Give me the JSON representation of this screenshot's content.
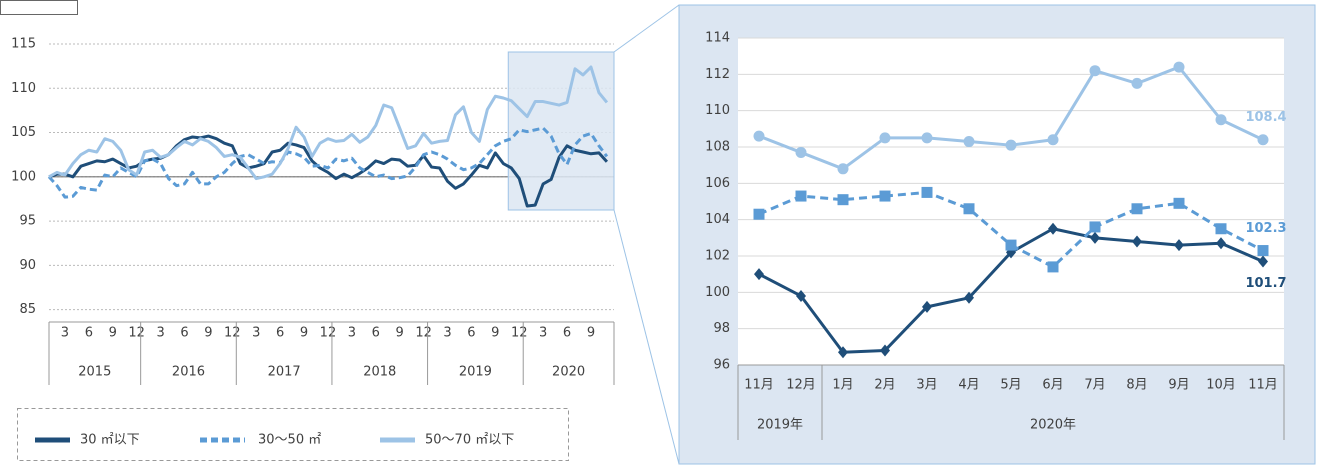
{
  "chart_data": [
    {
      "type": "line",
      "categories": [
        null,
        null,
        "3",
        null,
        null,
        "6",
        null,
        null,
        "9",
        null,
        null,
        "12",
        null,
        null,
        "3",
        null,
        null,
        "6",
        null,
        null,
        "9",
        null,
        null,
        "12",
        null,
        null,
        "3",
        null,
        null,
        "6",
        null,
        null,
        "9",
        null,
        null,
        "12",
        null,
        null,
        "3",
        null,
        null,
        "6",
        null,
        null,
        "9",
        null,
        null,
        "12",
        null,
        null,
        "3",
        null,
        null,
        "6",
        null,
        null,
        "9",
        null,
        null,
        "12",
        null,
        null,
        "3",
        null,
        null,
        "6",
        null,
        null,
        "9",
        null,
        null
      ],
      "category_groups": [
        "2015",
        "2015",
        "2015",
        "2015",
        "2015",
        "2015",
        "2015",
        "2015",
        "2015",
        "2015",
        "2015",
        "2015",
        "2016",
        "2016",
        "2016",
        "2016",
        "2016",
        "2016",
        "2016",
        "2016",
        "2016",
        "2016",
        "2016",
        "2016",
        "2017",
        "2017",
        "2017",
        "2017",
        "2017",
        "2017",
        "2017",
        "2017",
        "2017",
        "2017",
        "2017",
        "2017",
        "2018",
        "2018",
        "2018",
        "2018",
        "2018",
        "2018",
        "2018",
        "2018",
        "2018",
        "2018",
        "2018",
        "2018",
        "2019",
        "2019",
        "2019",
        "2019",
        "2019",
        "2019",
        "2019",
        "2019",
        "2019",
        "2019",
        "2019",
        "2019",
        "2020",
        "2020",
        "2020",
        "2020",
        "2020",
        "2020",
        "2020",
        "2020",
        "2020",
        "2020",
        "2020"
      ],
      "ylim": [
        83.6,
        115
      ],
      "yticks": [
        85,
        90,
        95,
        100,
        105,
        110,
        115
      ],
      "grid": true,
      "baseline": 100,
      "series": [
        {
          "name": "30 ㎡以下",
          "color": "#1f4e79",
          "dash": false,
          "values": [
            100,
            100.3,
            100.3,
            100,
            101.2,
            101.5,
            101.8,
            101.7,
            102,
            101.5,
            101,
            101.2,
            101.8,
            102,
            102.1,
            102.5,
            103.5,
            104.2,
            104.5,
            104.4,
            104.6,
            104.3,
            103.8,
            103.5,
            101.5,
            101,
            101.2,
            101.5,
            102.8,
            103,
            103.8,
            103.6,
            103.3,
            101.8,
            101,
            100.5,
            99.8,
            100.3,
            99.9,
            100.4,
            101,
            101.8,
            101.5,
            102,
            101.9,
            101.2,
            101.3,
            102.4,
            101.1,
            101,
            99.5,
            98.7,
            99.2,
            100.2,
            101.3,
            101,
            102.7,
            101.5,
            101,
            99.8,
            96.7,
            96.8,
            99.2,
            99.7,
            102.2,
            103.5,
            103,
            102.8,
            102.6,
            102.7,
            101.7
          ]
        },
        {
          "name": "30～50 ㎡",
          "color": "#5b9bd5",
          "dash": true,
          "values": [
            100,
            99,
            97.7,
            97.8,
            98.8,
            98.6,
            98.5,
            100.2,
            100,
            101,
            100.5,
            100,
            101.8,
            102,
            101.5,
            99.8,
            99,
            99.2,
            100.5,
            99.2,
            99.2,
            100,
            100.5,
            101.5,
            102.3,
            102.5,
            102,
            101.5,
            101.7,
            101.6,
            102.8,
            102.6,
            102.2,
            101.2,
            101.3,
            101,
            102,
            101.8,
            102.1,
            101,
            100.5,
            100,
            100.2,
            99.8,
            99.9,
            100.1,
            101.1,
            102.5,
            102.8,
            102.5,
            102,
            101.3,
            100.8,
            101,
            101.5,
            102.5,
            103.5,
            104,
            104.3,
            105.3,
            105.1,
            105.3,
            105.5,
            104.6,
            102.6,
            101.4,
            103.6,
            104.6,
            104.9,
            103.5,
            102.3
          ]
        },
        {
          "name": "50～70 ㎡以下",
          "color": "#9dc3e6",
          "dash": false,
          "values": [
            100,
            100.5,
            100.2,
            101.5,
            102.5,
            103,
            102.8,
            104.3,
            104,
            103,
            100.8,
            100.2,
            102.8,
            103,
            102.2,
            102.5,
            103.3,
            104,
            103.6,
            104.3,
            104,
            103.3,
            102.3,
            102.5,
            102.2,
            101,
            99.8,
            100,
            100.3,
            101.5,
            103.2,
            105.6,
            104.5,
            102.3,
            103.8,
            104.3,
            104,
            104.1,
            104.8,
            103.9,
            104.5,
            105.8,
            108.1,
            107.8,
            105.5,
            103.2,
            103.5,
            104.9,
            103.8,
            104,
            104.1,
            107,
            107.9,
            105,
            104,
            107.6,
            109.1,
            108.9,
            108.6,
            107.7,
            106.8,
            108.5,
            108.5,
            108.3,
            108.1,
            108.4,
            112.2,
            111.5,
            112.4,
            109.5,
            108.4
          ]
        }
      ]
    },
    {
      "type": "line",
      "categories": [
        "11月",
        "12月",
        "1月",
        "2月",
        "3月",
        "4月",
        "5月",
        "6月",
        "7月",
        "8月",
        "9月",
        "10月",
        "11月"
      ],
      "category_groups": [
        "2019年",
        "2019年",
        "2020年",
        "2020年",
        "2020年",
        "2020年",
        "2020年",
        "2020年",
        "2020年",
        "2020年",
        "2020年",
        "2020年",
        "2020年"
      ],
      "ylim": [
        96,
        114
      ],
      "yticks": [
        96,
        98,
        100,
        102,
        104,
        106,
        108,
        110,
        112,
        114
      ],
      "grid": true,
      "series": [
        {
          "color": "#1f4e79",
          "dash": false,
          "marker": "diamond",
          "values": [
            101.0,
            99.8,
            96.7,
            96.8,
            99.2,
            99.7,
            102.2,
            103.5,
            103.0,
            102.8,
            102.6,
            102.7,
            101.7
          ]
        },
        {
          "color": "#5b9bd5",
          "dash": true,
          "marker": "square",
          "values": [
            104.3,
            105.3,
            105.1,
            105.3,
            105.5,
            104.6,
            102.6,
            101.4,
            103.6,
            104.6,
            104.9,
            103.5,
            102.3
          ]
        },
        {
          "color": "#9dc3e6",
          "dash": false,
          "marker": "circle",
          "values": [
            108.6,
            107.7,
            106.8,
            108.5,
            108.5,
            108.3,
            108.1,
            108.4,
            112.2,
            111.5,
            112.4,
            109.5,
            108.4
          ]
        }
      ]
    }
  ]
}
